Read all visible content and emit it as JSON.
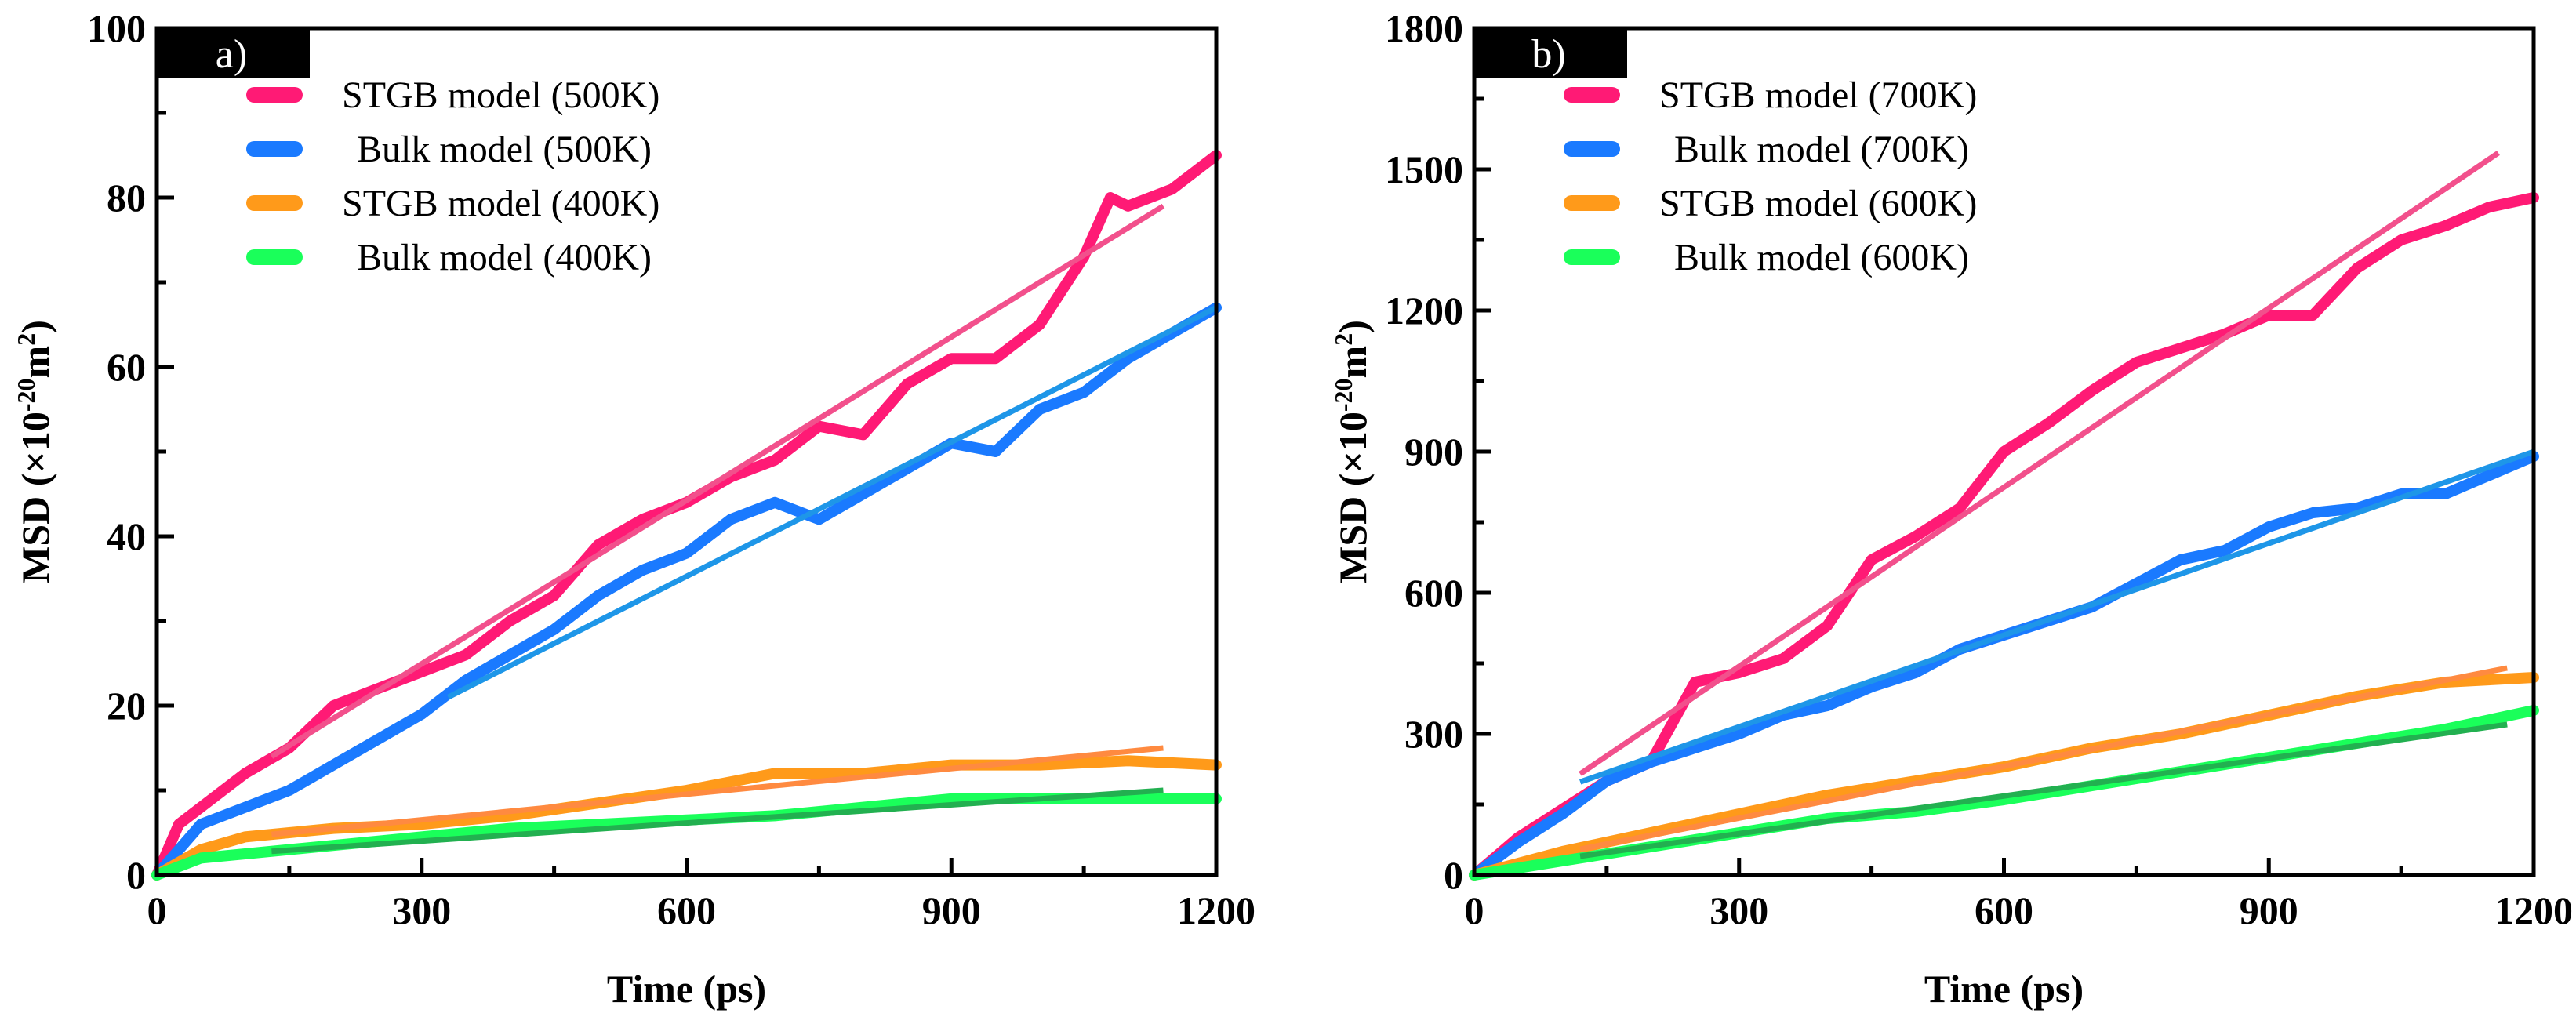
{
  "chart_data": [
    {
      "type": "line",
      "panel_label": "a)",
      "xlabel": "Time (ps)",
      "ylabel_main": "MSD (×10",
      "ylabel_exp": "-20",
      "ylabel_unit": "m",
      "ylabel_unit_exp": "2",
      "ylabel_close": ")",
      "xlim": [
        0,
        1200
      ],
      "ylim": [
        0,
        100
      ],
      "xticks": [
        0,
        300,
        600,
        900,
        1200
      ],
      "yticks": [
        0,
        20,
        40,
        60,
        80,
        100
      ],
      "legend_position": "top-left",
      "series": [
        {
          "name": "STGB model (500K)",
          "color": "#ff1a75",
          "fit_color": "#f2508c",
          "x": [
            0,
            25,
            50,
            100,
            150,
            200,
            250,
            300,
            350,
            400,
            450,
            500,
            550,
            600,
            650,
            700,
            750,
            800,
            850,
            900,
            950,
            1000,
            1050,
            1080,
            1100,
            1150,
            1200
          ],
          "y": [
            0,
            6,
            8,
            12,
            15,
            20,
            22,
            24,
            26,
            30,
            33,
            39,
            42,
            44,
            47,
            49,
            53,
            52,
            58,
            61,
            61,
            65,
            73,
            80,
            79,
            81,
            85
          ],
          "fit": {
            "x": [
              130,
              1140
            ],
            "y": [
              14,
              79
            ]
          }
        },
        {
          "name": "Bulk model (500K)",
          "color": "#1a7aff",
          "fit_color": "#1e96e8",
          "x": [
            0,
            50,
            100,
            150,
            200,
            250,
            300,
            350,
            400,
            450,
            500,
            550,
            600,
            650,
            700,
            750,
            800,
            850,
            900,
            950,
            1000,
            1050,
            1100,
            1150,
            1200
          ],
          "y": [
            0,
            6,
            8,
            10,
            13,
            16,
            19,
            23,
            26,
            29,
            33,
            36,
            38,
            42,
            44,
            42,
            45,
            48,
            51,
            50,
            55,
            57,
            61,
            64,
            67
          ],
          "fit": {
            "x": [
              330,
              1200
            ],
            "y": [
              21,
              67
            ]
          }
        },
        {
          "name": "STGB model (400K)",
          "color": "#ff9a1a",
          "fit_color": "#ff8a40",
          "x": [
            0,
            50,
            100,
            150,
            200,
            300,
            400,
            500,
            600,
            700,
            800,
            900,
            1000,
            1100,
            1200
          ],
          "y": [
            0,
            3,
            4.5,
            5,
            5.5,
            6,
            7,
            8.5,
            10,
            12,
            12,
            13,
            13,
            13.5,
            13
          ],
          "fit": {
            "x": [
              130,
              1140
            ],
            "y": [
              4.8,
              15
            ]
          }
        },
        {
          "name": "Bulk model (400K)",
          "color": "#1aff5a",
          "fit_color": "#22b050",
          "x": [
            0,
            50,
            100,
            200,
            300,
            400,
            500,
            600,
            700,
            800,
            900,
            1000,
            1100,
            1200
          ],
          "y": [
            0,
            2,
            2.5,
            3.5,
            4.5,
            5.5,
            6,
            6.5,
            7,
            8,
            9,
            9,
            9,
            9
          ],
          "fit": {
            "x": [
              130,
              1140
            ],
            "y": [
              2.8,
              10
            ]
          }
        }
      ]
    },
    {
      "type": "line",
      "panel_label": "b)",
      "xlabel": "Time (ps)",
      "ylabel_main": "MSD (×10",
      "ylabel_exp": "-20",
      "ylabel_unit": "m",
      "ylabel_unit_exp": "2",
      "ylabel_close": ")",
      "xlim": [
        0,
        1200
      ],
      "ylim": [
        0,
        1800
      ],
      "xticks": [
        0,
        300,
        600,
        900,
        1200
      ],
      "yticks": [
        0,
        300,
        600,
        900,
        1200,
        1500,
        1800
      ],
      "legend_position": "top-left",
      "series": [
        {
          "name": "STGB model (700K)",
          "color": "#ff1a75",
          "fit_color": "#f2508c",
          "x": [
            0,
            50,
            100,
            150,
            200,
            250,
            300,
            350,
            400,
            450,
            500,
            550,
            600,
            650,
            700,
            750,
            800,
            850,
            900,
            950,
            1000,
            1050,
            1100,
            1150,
            1200
          ],
          "y": [
            0,
            80,
            140,
            200,
            240,
            410,
            430,
            460,
            530,
            670,
            720,
            780,
            900,
            960,
            1030,
            1090,
            1120,
            1150,
            1190,
            1190,
            1290,
            1350,
            1380,
            1420,
            1440
          ],
          "fit": {
            "x": [
              120,
              1160
            ],
            "y": [
              215,
              1535
            ]
          }
        },
        {
          "name": "Bulk model (700K)",
          "color": "#1a7aff",
          "fit_color": "#1e96e8",
          "x": [
            0,
            50,
            100,
            150,
            200,
            250,
            300,
            350,
            400,
            450,
            500,
            550,
            600,
            650,
            700,
            750,
            800,
            850,
            900,
            950,
            1000,
            1050,
            1100,
            1150,
            1200
          ],
          "y": [
            0,
            70,
            130,
            200,
            240,
            270,
            300,
            340,
            360,
            400,
            430,
            480,
            510,
            540,
            570,
            620,
            670,
            690,
            740,
            770,
            780,
            810,
            810,
            850,
            890
          ],
          "fit": {
            "x": [
              120,
              1200
            ],
            "y": [
              198,
              900
            ]
          }
        },
        {
          "name": "STGB model (600K)",
          "color": "#ff9a1a",
          "fit_color": "#ff8a40",
          "x": [
            0,
            100,
            200,
            300,
            400,
            500,
            600,
            700,
            800,
            900,
            1000,
            1100,
            1200
          ],
          "y": [
            0,
            50,
            90,
            130,
            170,
            200,
            230,
            270,
            300,
            340,
            380,
            410,
            420
          ],
          "fit": {
            "x": [
              120,
              1170
            ],
            "y": [
              55,
              440
            ]
          }
        },
        {
          "name": "Bulk model (600K)",
          "color": "#1aff5a",
          "fit_color": "#22b050",
          "x": [
            0,
            100,
            200,
            300,
            400,
            500,
            600,
            700,
            800,
            900,
            1000,
            1100,
            1200
          ],
          "y": [
            0,
            30,
            60,
            90,
            120,
            135,
            160,
            190,
            220,
            250,
            280,
            310,
            350
          ],
          "fit": {
            "x": [
              120,
              1170
            ],
            "y": [
              40,
              320
            ]
          }
        }
      ]
    }
  ]
}
